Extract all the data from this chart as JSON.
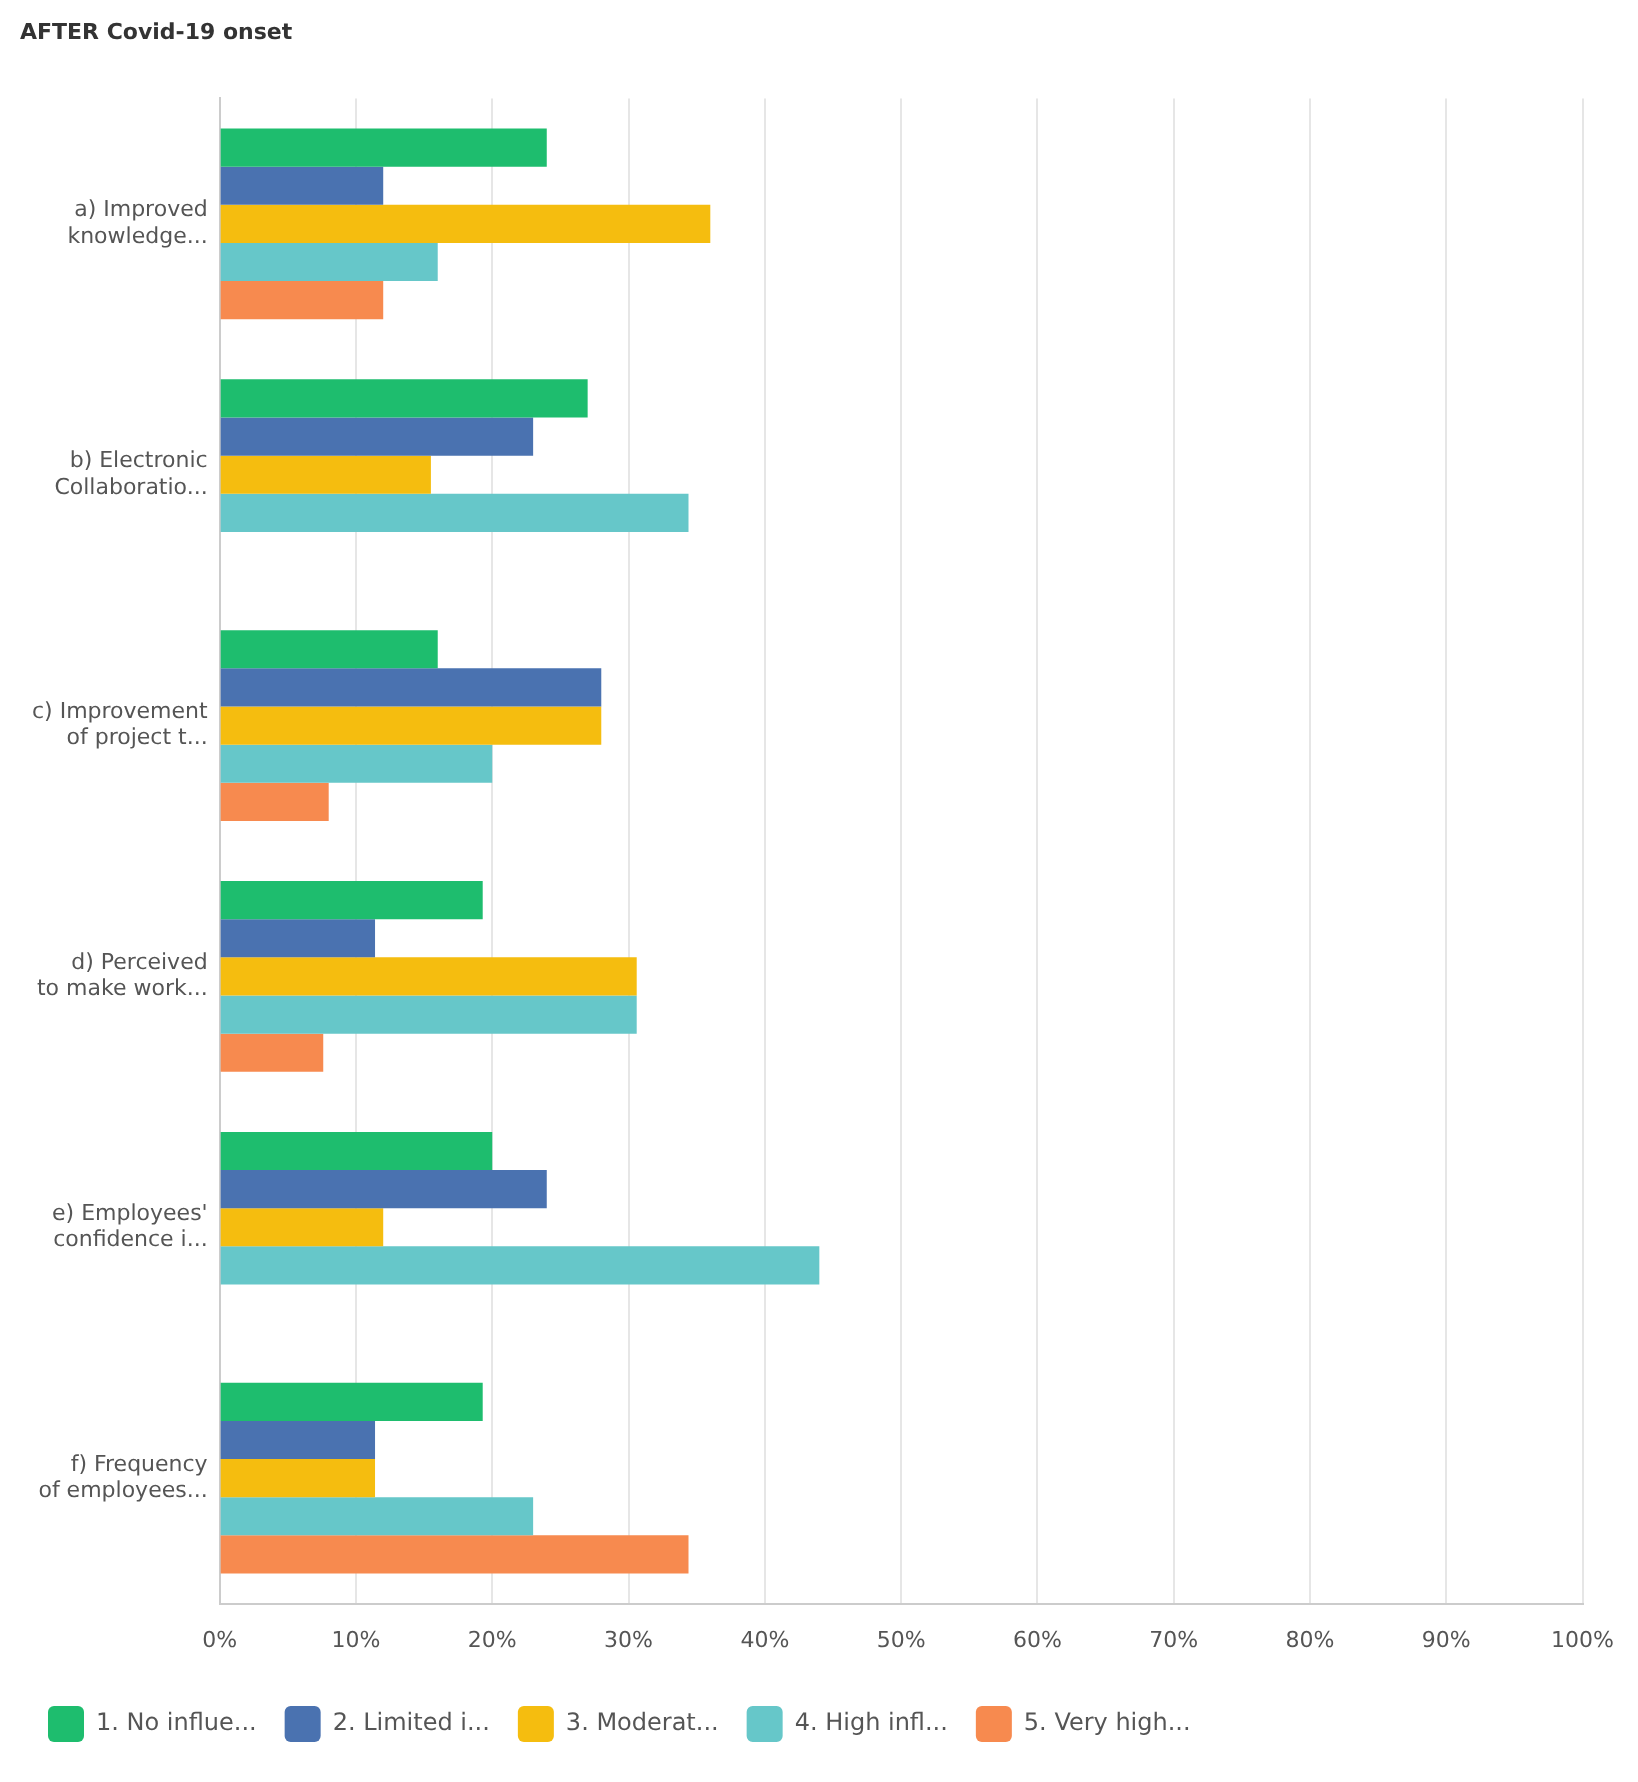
{
  "chart_data": {
    "type": "bar",
    "orientation": "horizontal",
    "title": "AFTER Covid-19 onset",
    "categories": [
      "a) Improved\nknowledge...",
      "b) Electronic\nCollaboratio...",
      "c) Improvement\nof project t...",
      "d) Perceived\nto make work...",
      "e) Employees'\nconfidence i...",
      "f) Frequency\nof employees..."
    ],
    "series": [
      {
        "name": "1. No influe...",
        "color": "#1ebd6e",
        "values": [
          24,
          27,
          16,
          19.3,
          20,
          19.3
        ]
      },
      {
        "name": "2. Limited i...",
        "color": "#4a72b0",
        "values": [
          12,
          23,
          28,
          11.4,
          24,
          11.4
        ]
      },
      {
        "name": "3. Moderat...",
        "color": "#f5bd0f",
        "values": [
          36,
          15.5,
          28,
          30.6,
          12,
          11.4
        ]
      },
      {
        "name": "4. High infl...",
        "color": "#66c7c9",
        "values": [
          16,
          34.4,
          20,
          30.6,
          44,
          23
        ]
      },
      {
        "name": "5. Very high...",
        "color": "#f78a4f",
        "values": [
          12,
          0,
          8,
          7.6,
          0,
          34.4
        ]
      }
    ],
    "xlim": [
      0,
      100
    ],
    "xticks": [
      {
        "value": 0,
        "label": "0%"
      },
      {
        "value": 10,
        "label": "10%"
      },
      {
        "value": 20,
        "label": "20%"
      },
      {
        "value": 30,
        "label": "30%"
      },
      {
        "value": 40,
        "label": "40%"
      },
      {
        "value": 50,
        "label": "50%"
      },
      {
        "value": 60,
        "label": "60%"
      },
      {
        "value": 70,
        "label": "70%"
      },
      {
        "value": 80,
        "label": "80%"
      },
      {
        "value": 90,
        "label": "90%"
      },
      {
        "value": 100,
        "label": "100%"
      }
    ],
    "grid": "x",
    "legend": "bottom"
  }
}
